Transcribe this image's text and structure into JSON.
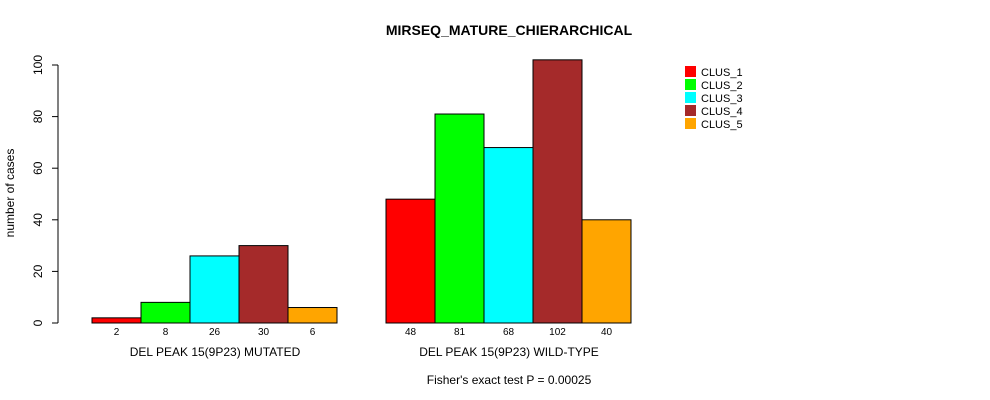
{
  "chart_data": {
    "type": "bar",
    "title": "MIRSEQ_MATURE_CHIERARCHICAL",
    "ylabel": "number of cases",
    "xlabel": "",
    "ylim": [
      0,
      100
    ],
    "yticks": [
      0,
      20,
      40,
      60,
      80,
      100
    ],
    "groups": [
      "DEL PEAK 15(9P23) MUTATED",
      "DEL PEAK 15(9P23) WILD-TYPE"
    ],
    "series": [
      {
        "name": "CLUS_1",
        "color": "#ff0000",
        "values": [
          2,
          48
        ]
      },
      {
        "name": "CLUS_2",
        "color": "#00ff00",
        "values": [
          8,
          81
        ]
      },
      {
        "name": "CLUS_3",
        "color": "#00ffff",
        "values": [
          26,
          68
        ]
      },
      {
        "name": "CLUS_4",
        "color": "#a52a2a",
        "values": [
          30,
          102
        ]
      },
      {
        "name": "CLUS_5",
        "color": "#ffa500",
        "values": [
          6,
          40
        ]
      }
    ],
    "bar_labels": [
      [
        "2",
        "8",
        "26",
        "30",
        "6"
      ],
      [
        "48",
        "81",
        "68",
        "102",
        "40"
      ]
    ],
    "legend_position": "top-right",
    "grid": false,
    "footnote": "Fisher's exact test P = 0.00025"
  }
}
